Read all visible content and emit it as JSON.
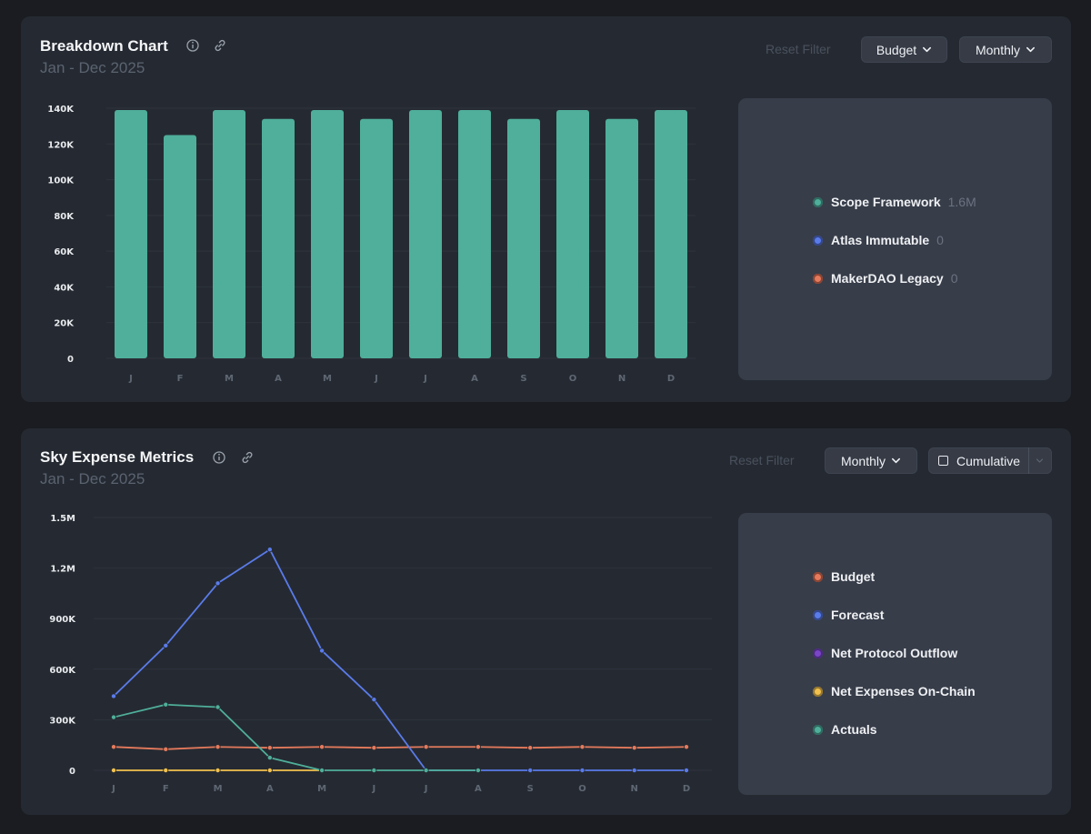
{
  "breakdown": {
    "title": "Breakdown Chart",
    "subtitle": "Jan - Dec 2025",
    "reset_label": "Reset Filter",
    "budget_label": "Budget",
    "monthly_label": "Monthly",
    "legend": [
      {
        "label": "Scope Framework",
        "value": "1.6M",
        "color": "#4faf9a"
      },
      {
        "label": "Atlas Immutable",
        "value": "0",
        "color": "#5a7bea"
      },
      {
        "label": "MakerDAO Legacy",
        "value": "0",
        "color": "#e57a5c"
      }
    ]
  },
  "metrics": {
    "title": "Sky Expense Metrics",
    "subtitle": "Jan - Dec 2025",
    "reset_label": "Reset Filter",
    "monthly_label": "Monthly",
    "cumulative_label": "Cumulative",
    "legend": [
      {
        "label": "Budget",
        "color": "#e57a5c"
      },
      {
        "label": "Forecast",
        "color": "#5a7bea"
      },
      {
        "label": "Net Protocol Outflow",
        "color": "#7a46c8"
      },
      {
        "label": "Net Expenses On-Chain",
        "color": "#f2c14e"
      },
      {
        "label": "Actuals",
        "color": "#4faf9a"
      }
    ]
  },
  "chart_data": [
    {
      "type": "bar",
      "title": "Breakdown Chart",
      "categories": [
        "J",
        "F",
        "M",
        "A",
        "M",
        "J",
        "J",
        "A",
        "S",
        "O",
        "N",
        "D"
      ],
      "series": [
        {
          "name": "Scope Framework",
          "color": "#4faf9a",
          "values": [
            139000,
            125000,
            139000,
            134000,
            139000,
            134000,
            139000,
            139000,
            134000,
            139000,
            134000,
            139000
          ]
        }
      ],
      "ylim": [
        0,
        140000
      ],
      "yticks": [
        0,
        20000,
        40000,
        60000,
        80000,
        100000,
        120000,
        140000
      ],
      "ytick_labels": [
        "0",
        "20K",
        "40K",
        "60K",
        "80K",
        "100K",
        "120K",
        "140K"
      ]
    },
    {
      "type": "line",
      "title": "Sky Expense Metrics",
      "categories": [
        "J",
        "F",
        "M",
        "A",
        "M",
        "J",
        "J",
        "A",
        "S",
        "O",
        "N",
        "D"
      ],
      "ylim": [
        0,
        1500000
      ],
      "yticks": [
        0,
        300000,
        600000,
        900000,
        1200000,
        1500000
      ],
      "ytick_labels": [
        "0",
        "300K",
        "600K",
        "900K",
        "1.2M",
        "1.5M"
      ],
      "series": [
        {
          "name": "Budget",
          "color": "#e57a5c",
          "values": [
            139000,
            125000,
            139000,
            134000,
            139000,
            134000,
            139000,
            139000,
            134000,
            139000,
            134000,
            139000
          ]
        },
        {
          "name": "Forecast",
          "color": "#5a7bea",
          "values": [
            440000,
            740000,
            1110000,
            1310000,
            710000,
            420000,
            0,
            0,
            0,
            0,
            0,
            0
          ]
        },
        {
          "name": "Net Expenses On-Chain",
          "color": "#f2c14e",
          "values": [
            0,
            0,
            0,
            0,
            0,
            null,
            null,
            null,
            null,
            null,
            null,
            null
          ]
        },
        {
          "name": "Actuals",
          "color": "#4faf9a",
          "values": [
            315000,
            390000,
            375000,
            75000,
            0,
            0,
            0,
            0,
            null,
            null,
            null,
            null
          ]
        }
      ]
    }
  ]
}
